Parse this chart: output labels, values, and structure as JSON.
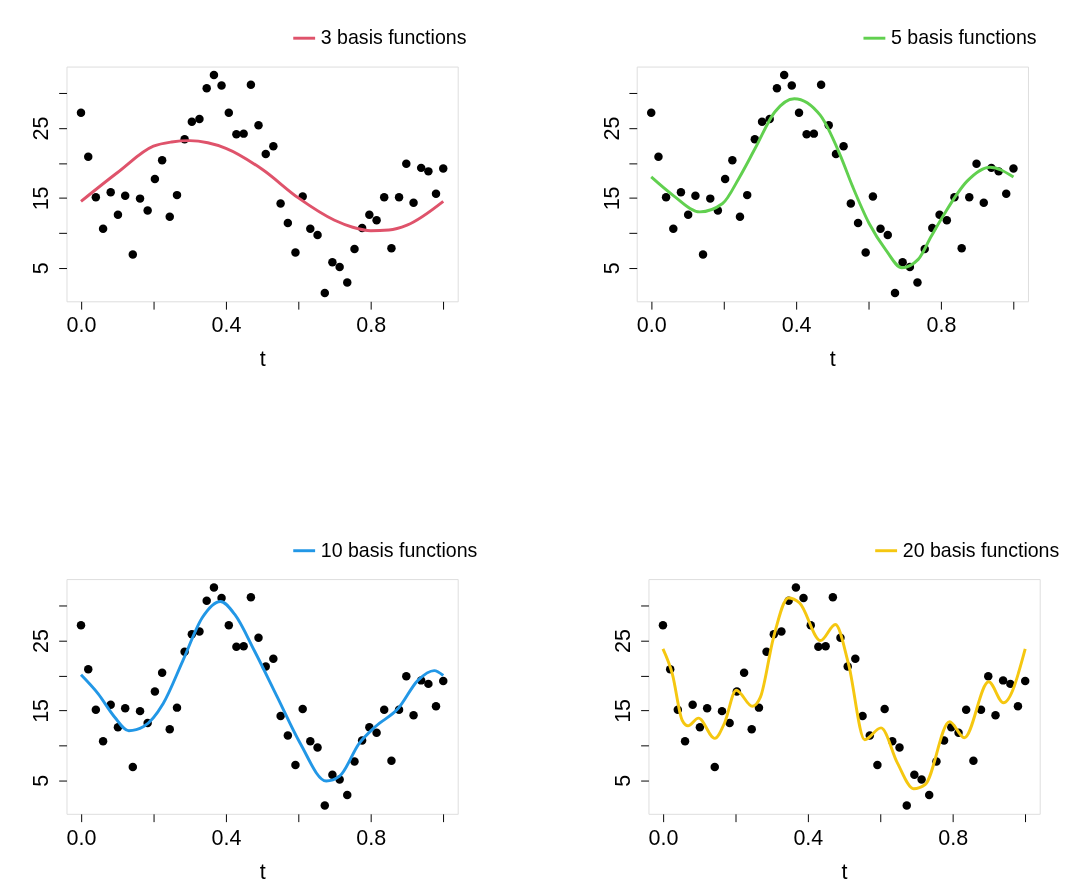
{
  "chart_data": [
    {
      "type": "line",
      "xlabel": "t",
      "legend": "top right",
      "grid": false,
      "xlim": [
        -0.04,
        1.04
      ],
      "ylim": [
        0.2,
        33.8
      ],
      "xticks": [
        {
          "value": 0,
          "label": "0.0"
        },
        {
          "value": 0.2,
          "label": null
        },
        {
          "value": 0.4,
          "label": "0.4"
        },
        {
          "value": 0.6,
          "label": null
        },
        {
          "value": 0.8,
          "label": "0.8"
        },
        {
          "value": 1,
          "label": null
        }
      ],
      "yticks": [
        5,
        {
          "value": 10,
          "label": null
        },
        15,
        {
          "value": 20,
          "label": null
        },
        25,
        {
          "value": 30,
          "label": null
        }
      ],
      "series": [
        {
          "type": "scatter",
          "marker": "circle",
          "color": "#000000",
          "x": [
            0,
            0.02,
            0.041,
            0.061,
            0.082,
            0.102,
            0.122,
            0.143,
            0.163,
            0.184,
            0.204,
            0.224,
            0.245,
            0.265,
            0.286,
            0.306,
            0.327,
            0.347,
            0.367,
            0.388,
            0.408,
            0.429,
            0.449,
            0.469,
            0.49,
            0.51,
            0.531,
            0.551,
            0.571,
            0.592,
            0.612,
            0.633,
            0.653,
            0.673,
            0.694,
            0.714,
            0.735,
            0.755,
            0.776,
            0.796,
            0.816,
            0.837,
            0.857,
            0.878,
            0.898,
            0.918,
            0.939,
            0.959,
            0.98,
            1
          ],
          "values": [
            27.2,
            20.9,
            15.1,
            10.6,
            15.8,
            12.6,
            15.3,
            6.9,
            14.9,
            13.2,
            17.7,
            20.4,
            12.3,
            15.4,
            23.4,
            25.9,
            26.3,
            30.7,
            32.6,
            31.1,
            27.2,
            24.1,
            24.2,
            31.2,
            25.4,
            21.3,
            22.4,
            14.2,
            11.4,
            7.2,
            15.2,
            10.6,
            9.7,
            1.4,
            5.8,
            5.1,
            2.9,
            7.7,
            10.7,
            12.6,
            11.8,
            15.1,
            7.8,
            15.1,
            19.9,
            14.3,
            19.3,
            18.8,
            15.6,
            19.2
          ]
        },
        {
          "name": "3 basis functions",
          "color": "#df536b",
          "x": [
            0,
            0.1,
            0.2,
            0.25,
            0.3,
            0.35,
            0.4,
            0.5,
            0.6,
            0.7,
            0.75,
            0.8,
            0.85,
            0.9,
            1
          ],
          "values": [
            14.5,
            18.6,
            22.4,
            23.0,
            23.2,
            22.9,
            22.1,
            19.1,
            15.0,
            11.8,
            10.8,
            10.3,
            10.4,
            11.1,
            14.5
          ]
        }
      ]
    },
    {
      "type": "line",
      "xlabel": "t",
      "legend": "top right",
      "grid": false,
      "xlim": [
        -0.04,
        1.04
      ],
      "ylim": [
        0.2,
        33.8
      ],
      "xticks": [
        {
          "value": 0,
          "label": "0.0"
        },
        {
          "value": 0.2,
          "label": null
        },
        {
          "value": 0.4,
          "label": "0.4"
        },
        {
          "value": 0.6,
          "label": null
        },
        {
          "value": 0.8,
          "label": "0.8"
        },
        {
          "value": 1,
          "label": null
        }
      ],
      "yticks": [
        5,
        {
          "value": 10,
          "label": null
        },
        15,
        {
          "value": 20,
          "label": null
        },
        25,
        {
          "value": 30,
          "label": null
        }
      ],
      "series": [
        {
          "type": "scatter",
          "marker": "circle",
          "color": "#000000",
          "x": [
            0,
            0.02,
            0.041,
            0.061,
            0.082,
            0.102,
            0.122,
            0.143,
            0.163,
            0.184,
            0.204,
            0.224,
            0.245,
            0.265,
            0.286,
            0.306,
            0.327,
            0.347,
            0.367,
            0.388,
            0.408,
            0.429,
            0.449,
            0.469,
            0.49,
            0.51,
            0.531,
            0.551,
            0.571,
            0.592,
            0.612,
            0.633,
            0.653,
            0.673,
            0.694,
            0.714,
            0.735,
            0.755,
            0.776,
            0.796,
            0.816,
            0.837,
            0.857,
            0.878,
            0.898,
            0.918,
            0.939,
            0.959,
            0.98,
            1
          ],
          "values": [
            27.2,
            20.9,
            15.1,
            10.6,
            15.8,
            12.6,
            15.3,
            6.9,
            14.9,
            13.2,
            17.7,
            20.4,
            12.3,
            15.4,
            23.4,
            25.9,
            26.3,
            30.7,
            32.6,
            31.1,
            27.2,
            24.1,
            24.2,
            31.2,
            25.4,
            21.3,
            22.4,
            14.2,
            11.4,
            7.2,
            15.2,
            10.6,
            9.7,
            1.4,
            5.8,
            5.1,
            2.9,
            7.7,
            10.7,
            12.6,
            11.8,
            15.1,
            7.8,
            15.1,
            19.9,
            14.3,
            19.3,
            18.8,
            15.6,
            19.2
          ]
        },
        {
          "name": "5 basis functions",
          "color": "#61d04f",
          "x": [
            0,
            0.062,
            0.134,
            0.197,
            0.243,
            0.287,
            0.341,
            0.395,
            0.467,
            0.521,
            0.557,
            0.602,
            0.647,
            0.692,
            0.737,
            0.773,
            0.809,
            0.872,
            0.935,
            1
          ],
          "values": [
            18.0,
            15.3,
            13.0,
            14.2,
            17.9,
            22.1,
            27.3,
            29.2,
            26.8,
            21.2,
            16.5,
            11.3,
            7.6,
            5.0,
            6.2,
            9.5,
            12.7,
            17.4,
            19.4,
            18.0
          ]
        }
      ]
    },
    {
      "type": "line",
      "xlabel": "t",
      "legend": "top right",
      "grid": false,
      "xlim": [
        -0.04,
        1.04
      ],
      "ylim": [
        0.2,
        33.8
      ],
      "xticks": [
        {
          "value": 0,
          "label": "0.0"
        },
        {
          "value": 0.2,
          "label": null
        },
        {
          "value": 0.4,
          "label": "0.4"
        },
        {
          "value": 0.6,
          "label": null
        },
        {
          "value": 0.8,
          "label": "0.8"
        },
        {
          "value": 1,
          "label": null
        }
      ],
      "yticks": [
        5,
        {
          "value": 10,
          "label": null
        },
        15,
        {
          "value": 20,
          "label": null
        },
        25,
        {
          "value": 30,
          "label": null
        }
      ],
      "series": [
        {
          "type": "scatter",
          "marker": "circle",
          "color": "#000000",
          "x": [
            0,
            0.02,
            0.041,
            0.061,
            0.082,
            0.102,
            0.122,
            0.143,
            0.163,
            0.184,
            0.204,
            0.224,
            0.245,
            0.265,
            0.286,
            0.306,
            0.327,
            0.347,
            0.367,
            0.388,
            0.408,
            0.429,
            0.449,
            0.469,
            0.49,
            0.51,
            0.531,
            0.551,
            0.571,
            0.592,
            0.612,
            0.633,
            0.653,
            0.673,
            0.694,
            0.714,
            0.735,
            0.755,
            0.776,
            0.796,
            0.816,
            0.837,
            0.857,
            0.878,
            0.898,
            0.918,
            0.939,
            0.959,
            0.98,
            1
          ],
          "values": [
            27.2,
            20.9,
            15.1,
            10.6,
            15.8,
            12.6,
            15.3,
            6.9,
            14.9,
            13.2,
            17.7,
            20.4,
            12.3,
            15.4,
            23.4,
            25.9,
            26.3,
            30.7,
            32.6,
            31.1,
            27.2,
            24.1,
            24.2,
            31.2,
            25.4,
            21.3,
            22.4,
            14.2,
            11.4,
            7.2,
            15.2,
            10.6,
            9.7,
            1.4,
            5.8,
            5.1,
            2.9,
            7.7,
            10.7,
            12.6,
            11.8,
            15.1,
            7.8,
            15.1,
            19.9,
            14.3,
            19.3,
            18.8,
            15.6,
            19.2
          ]
        },
        {
          "name": "10 basis functions",
          "color": "#2297e6",
          "x": [
            0,
            0.047,
            0.092,
            0.132,
            0.173,
            0.227,
            0.281,
            0.335,
            0.385,
            0.425,
            0.479,
            0.542,
            0.605,
            0.677,
            0.714,
            0.768,
            0.813,
            0.876,
            0.93,
            0.975,
            1
          ],
          "values": [
            20.1,
            17.4,
            14.1,
            12.1,
            12.7,
            16.0,
            22.1,
            28.3,
            30.6,
            28.7,
            23.5,
            16.9,
            10.3,
            4.9,
            5.6,
            10.3,
            12.7,
            15.3,
            19.3,
            20.7,
            20.0
          ]
        }
      ]
    },
    {
      "type": "line",
      "xlabel": "t",
      "legend": "top right",
      "grid": false,
      "xlim": [
        -0.04,
        1.04
      ],
      "ylim": [
        0.2,
        33.8
      ],
      "xticks": [
        {
          "value": 0,
          "label": "0.0"
        },
        {
          "value": 0.2,
          "label": null
        },
        {
          "value": 0.4,
          "label": "0.4"
        },
        {
          "value": 0.6,
          "label": null
        },
        {
          "value": 0.8,
          "label": "0.8"
        },
        {
          "value": 1,
          "label": null
        }
      ],
      "yticks": [
        5,
        {
          "value": 10,
          "label": null
        },
        15,
        {
          "value": 20,
          "label": null
        },
        25,
        {
          "value": 30,
          "label": null
        }
      ],
      "series": [
        {
          "type": "scatter",
          "marker": "circle",
          "color": "#000000",
          "x": [
            0,
            0.02,
            0.041,
            0.061,
            0.082,
            0.102,
            0.122,
            0.143,
            0.163,
            0.184,
            0.204,
            0.224,
            0.245,
            0.265,
            0.286,
            0.306,
            0.327,
            0.347,
            0.367,
            0.388,
            0.408,
            0.429,
            0.449,
            0.469,
            0.49,
            0.51,
            0.531,
            0.551,
            0.571,
            0.592,
            0.612,
            0.633,
            0.653,
            0.673,
            0.694,
            0.714,
            0.735,
            0.755,
            0.776,
            0.796,
            0.816,
            0.837,
            0.857,
            0.878,
            0.898,
            0.918,
            0.939,
            0.959,
            0.98,
            1
          ],
          "values": [
            27.2,
            20.9,
            15.1,
            10.6,
            15.8,
            12.6,
            15.3,
            6.9,
            14.9,
            13.2,
            17.7,
            20.4,
            12.3,
            15.4,
            23.4,
            25.9,
            26.3,
            30.7,
            32.6,
            31.1,
            27.2,
            24.1,
            24.2,
            31.2,
            25.4,
            21.3,
            22.4,
            14.2,
            11.4,
            7.2,
            15.2,
            10.6,
            9.7,
            1.4,
            5.8,
            5.1,
            2.9,
            7.7,
            10.7,
            12.6,
            11.8,
            15.1,
            7.8,
            15.1,
            19.9,
            14.3,
            19.3,
            18.8,
            15.6,
            19.2
          ]
        },
        {
          "name": "20 basis functions",
          "color": "#f5c710",
          "x": [
            0,
            0.026,
            0.053,
            0.069,
            0.098,
            0.143,
            0.17,
            0.202,
            0.247,
            0.269,
            0.305,
            0.346,
            0.377,
            0.435,
            0.476,
            0.512,
            0.557,
            0.602,
            0.647,
            0.692,
            0.724,
            0.791,
            0.832,
            0.899,
            0.94,
            1
          ],
          "values": [
            23.8,
            20.2,
            13.6,
            12.8,
            13.9,
            11.0,
            13.2,
            17.9,
            15.6,
            16.9,
            25.4,
            31.1,
            30.4,
            25.0,
            27.3,
            21.7,
            10.8,
            12.5,
            7.5,
            3.8,
            4.4,
            13.4,
            11.1,
            19.1,
            16.1,
            23.8
          ]
        }
      ]
    }
  ]
}
